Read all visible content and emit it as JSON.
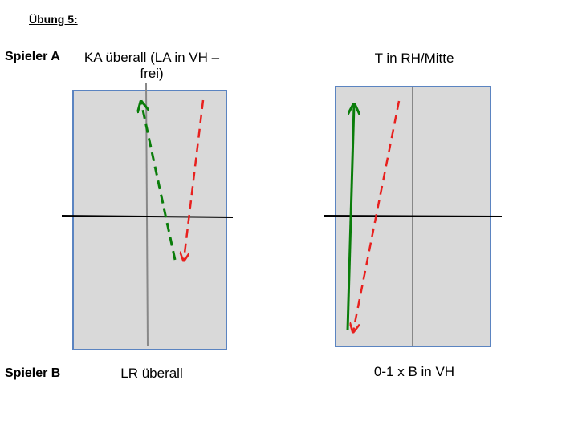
{
  "title": "Übung 5:",
  "players": {
    "a_label": "Spieler A",
    "b_label": "Spieler B"
  },
  "left_diagram": {
    "top_caption": "KA überall (LA in VH – frei)",
    "bottom_caption": "LR überall"
  },
  "right_diagram": {
    "top_caption": "T in RH/Mitte",
    "bottom_caption": "0-1 x B in VH"
  },
  "colors": {
    "table_fill": "#d9d9d9",
    "table_border": "#5b84c1",
    "net": "#000000",
    "center_line": "#888888",
    "green_arrow": "#0a7d0a",
    "red_arrow": "#e8201e"
  }
}
